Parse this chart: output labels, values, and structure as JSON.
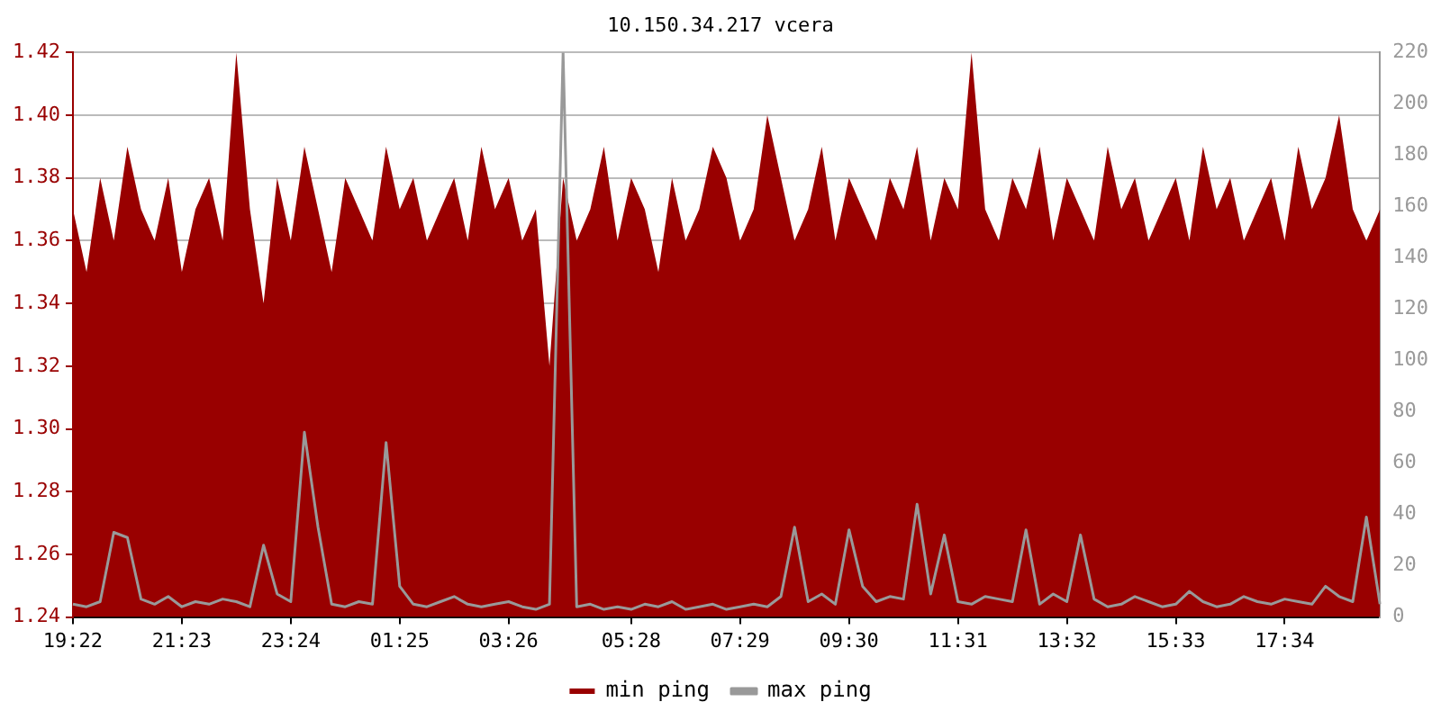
{
  "chart_data": {
    "type": "area",
    "title": "10.150.34.217 vcera",
    "categories": [
      "19:22",
      null,
      null,
      null,
      null,
      null,
      null,
      null,
      "21:23",
      null,
      null,
      null,
      null,
      null,
      null,
      null,
      "23:24",
      null,
      null,
      null,
      null,
      null,
      null,
      null,
      "01:25",
      null,
      null,
      null,
      null,
      null,
      null,
      null,
      "03:26",
      null,
      null,
      null,
      null,
      null,
      null,
      null,
      null,
      "05:28",
      null,
      null,
      null,
      null,
      null,
      null,
      null,
      "07:29",
      null,
      null,
      null,
      null,
      null,
      null,
      null,
      "09:30",
      null,
      null,
      null,
      null,
      null,
      null,
      null,
      "11:31",
      null,
      null,
      null,
      null,
      null,
      null,
      null,
      "13:32",
      null,
      null,
      null,
      null,
      null,
      null,
      null,
      "15:33",
      null,
      null,
      null,
      null,
      null,
      null,
      null,
      "17:34",
      null,
      null,
      null,
      null,
      null,
      null,
      null
    ],
    "series": [
      {
        "name": "min ping",
        "type": "area",
        "color": "#990000",
        "values": [
          1.37,
          1.35,
          1.38,
          1.36,
          1.39,
          1.37,
          1.36,
          1.38,
          1.35,
          1.37,
          1.38,
          1.36,
          1.42,
          1.37,
          1.34,
          1.38,
          1.36,
          1.39,
          1.37,
          1.35,
          1.38,
          1.37,
          1.36,
          1.39,
          1.37,
          1.38,
          1.36,
          1.37,
          1.38,
          1.36,
          1.39,
          1.37,
          1.38,
          1.36,
          1.37,
          1.32,
          1.38,
          1.36,
          1.37,
          1.39,
          1.36,
          1.38,
          1.37,
          1.35,
          1.38,
          1.36,
          1.37,
          1.39,
          1.38,
          1.36,
          1.37,
          1.4,
          1.38,
          1.36,
          1.37,
          1.39,
          1.36,
          1.38,
          1.37,
          1.36,
          1.38,
          1.37,
          1.39,
          1.36,
          1.38,
          1.37,
          1.42,
          1.37,
          1.36,
          1.38,
          1.37,
          1.39,
          1.36,
          1.38,
          1.37,
          1.36,
          1.39,
          1.37,
          1.38,
          1.36,
          1.37,
          1.38,
          1.36,
          1.39,
          1.37,
          1.38,
          1.36,
          1.37,
          1.38,
          1.36,
          1.39,
          1.37,
          1.38,
          1.4,
          1.37,
          1.36,
          1.37
        ]
      },
      {
        "name": "max ping",
        "type": "line",
        "axis": "y2",
        "color": "#999999",
        "values": [
          5,
          4,
          6,
          33,
          31,
          7,
          5,
          8,
          4,
          6,
          5,
          7,
          6,
          4,
          28,
          9,
          6,
          72,
          35,
          5,
          4,
          6,
          5,
          68,
          12,
          5,
          4,
          6,
          8,
          5,
          4,
          5,
          6,
          4,
          3,
          5,
          220,
          4,
          5,
          3,
          4,
          3,
          5,
          4,
          6,
          3,
          4,
          5,
          3,
          4,
          5,
          4,
          8,
          35,
          6,
          9,
          5,
          34,
          12,
          6,
          8,
          7,
          44,
          9,
          32,
          6,
          5,
          8,
          7,
          6,
          34,
          5,
          9,
          6,
          32,
          7,
          4,
          5,
          8,
          6,
          4,
          5,
          10,
          6,
          4,
          5,
          8,
          6,
          5,
          7,
          6,
          5,
          12,
          8,
          6,
          39,
          5
        ]
      }
    ],
    "ylim": [
      1.24,
      1.42
    ],
    "yticks": [
      {
        "value": 1.24,
        "label": "1.24"
      },
      {
        "value": 1.26,
        "label": "1.26"
      },
      {
        "value": 1.28,
        "label": "1.28"
      },
      {
        "value": 1.3,
        "label": "1.30"
      },
      {
        "value": 1.32,
        "label": "1.32"
      },
      {
        "value": 1.34,
        "label": "1.34"
      },
      {
        "value": 1.36,
        "label": "1.36"
      },
      {
        "value": 1.38,
        "label": "1.38"
      },
      {
        "value": 1.4,
        "label": "1.40"
      },
      {
        "value": 1.42,
        "label": "1.42"
      }
    ],
    "y2lim": [
      0,
      220
    ],
    "y2ticks": [
      0,
      20,
      40,
      60,
      80,
      100,
      120,
      140,
      160,
      180,
      200,
      220
    ],
    "grid": "y",
    "legend": "bottom"
  }
}
